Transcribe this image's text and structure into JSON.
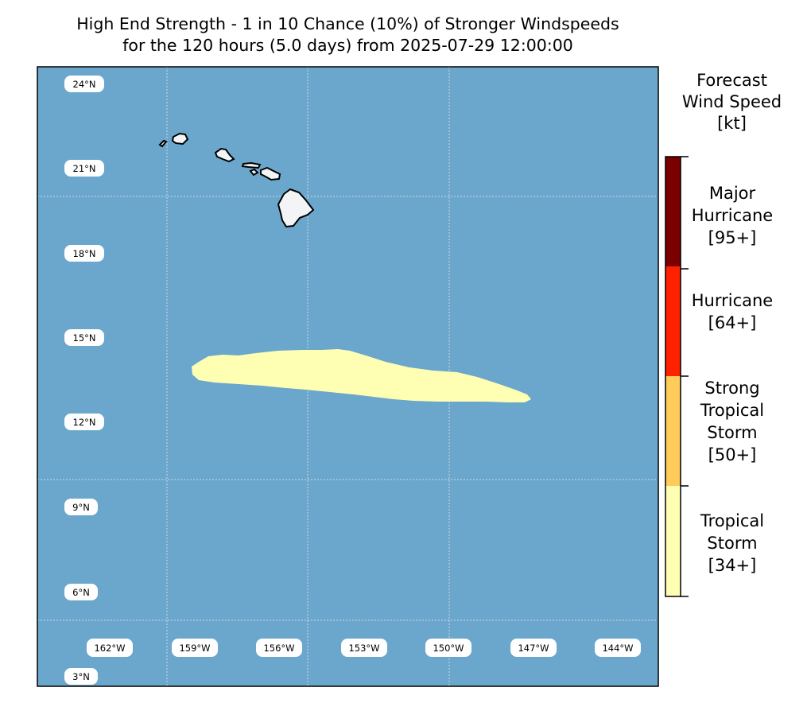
{
  "title": {
    "line1": "High End Strength - 1 in 10 Chance (10%) of Stronger Windspeeds",
    "line2": "for the 120 hours (5.0 days) from 2025-07-29 12:00:00"
  },
  "map": {
    "ocean_color": "#6ba7cc",
    "land_color": "#f3f4f6",
    "swath_color": "#ffffb3",
    "lat_labels": [
      "24°N",
      "21°N",
      "18°N",
      "15°N",
      "12°N",
      "9°N",
      "6°N",
      "3°N"
    ],
    "lon_labels": [
      "162°W",
      "159°W",
      "156°W",
      "153°W",
      "150°W",
      "147°W",
      "144°W"
    ]
  },
  "legend": {
    "title": [
      "Forecast",
      "Wind Speed",
      "[kt]"
    ],
    "categories": [
      {
        "lines": [
          "Major",
          "Hurricane",
          "[95+]"
        ],
        "color": "#7b0000"
      },
      {
        "lines": [
          "Hurricane",
          "[64+]"
        ],
        "color": "#ff2200"
      },
      {
        "lines": [
          "Strong",
          "Tropical",
          "Storm",
          "[50+]"
        ],
        "color": "#ffcc5c"
      },
      {
        "lines": [
          "Tropical",
          "Storm",
          "[34+]"
        ],
        "color": "#ffffb3"
      }
    ]
  }
}
